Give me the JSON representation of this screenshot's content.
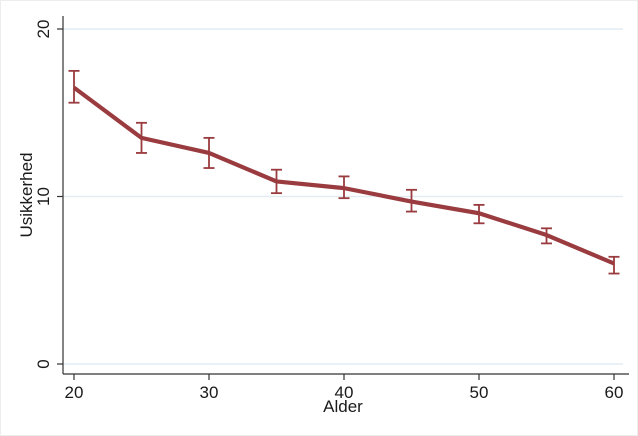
{
  "chart_data": {
    "type": "line",
    "title": "",
    "xlabel": "Alder",
    "ylabel": "Usikkerhed",
    "x": [
      20,
      25,
      30,
      35,
      40,
      45,
      50,
      55,
      60
    ],
    "series": [
      {
        "name": "Usikkerhed",
        "values": [
          16.5,
          13.5,
          12.6,
          10.9,
          10.5,
          9.7,
          9.0,
          7.7,
          6.0
        ],
        "ci_low": [
          15.6,
          12.6,
          11.7,
          10.2,
          9.9,
          9.1,
          8.4,
          7.2,
          5.4
        ],
        "ci_high": [
          17.5,
          14.4,
          13.5,
          11.6,
          11.2,
          10.4,
          9.5,
          8.1,
          6.4
        ]
      }
    ],
    "xlim": [
      20,
      60
    ],
    "ylim": [
      0,
      20
    ],
    "x_ticks": [
      "20",
      "30",
      "40",
      "50",
      "60"
    ],
    "x_tick_values": [
      20,
      30,
      40,
      50,
      60
    ],
    "y_ticks": [
      "0",
      "10",
      "20"
    ],
    "y_tick_values": [
      0,
      10,
      20
    ],
    "grid": true,
    "legend": "none",
    "error_bars": true,
    "colors": {
      "line": "#9a3b3f",
      "error_bar": "#9a3b3f",
      "grid": "#e2ecf3",
      "axis": "#333333",
      "text": "#1a1a1a",
      "background": "#ffffff"
    }
  }
}
